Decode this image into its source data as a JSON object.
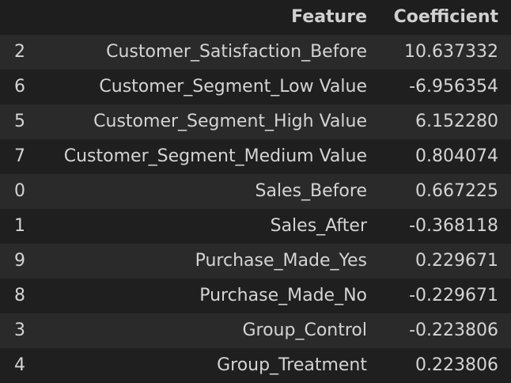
{
  "table": {
    "columns": [
      "Feature",
      "Coefficient"
    ],
    "rows": [
      {
        "index": "2",
        "feature": "Customer_Satisfaction_Before",
        "coefficient": "10.637332"
      },
      {
        "index": "6",
        "feature": "Customer_Segment_Low Value",
        "coefficient": "-6.956354"
      },
      {
        "index": "5",
        "feature": "Customer_Segment_High Value",
        "coefficient": "6.152280"
      },
      {
        "index": "7",
        "feature": "Customer_Segment_Medium Value",
        "coefficient": "0.804074"
      },
      {
        "index": "0",
        "feature": "Sales_Before",
        "coefficient": "0.667225"
      },
      {
        "index": "1",
        "feature": "Sales_After",
        "coefficient": "-0.368118"
      },
      {
        "index": "9",
        "feature": "Purchase_Made_Yes",
        "coefficient": "0.229671"
      },
      {
        "index": "8",
        "feature": "Purchase_Made_No",
        "coefficient": "-0.229671"
      },
      {
        "index": "3",
        "feature": "Group_Control",
        "coefficient": "-0.223806"
      },
      {
        "index": "4",
        "feature": "Group_Treatment",
        "coefficient": "0.223806"
      }
    ]
  },
  "colors": {
    "background": "#1e1e1e",
    "row_even": "#1f1f1f",
    "row_odd": "#2a2a2a",
    "text": "#d4d4d4"
  }
}
